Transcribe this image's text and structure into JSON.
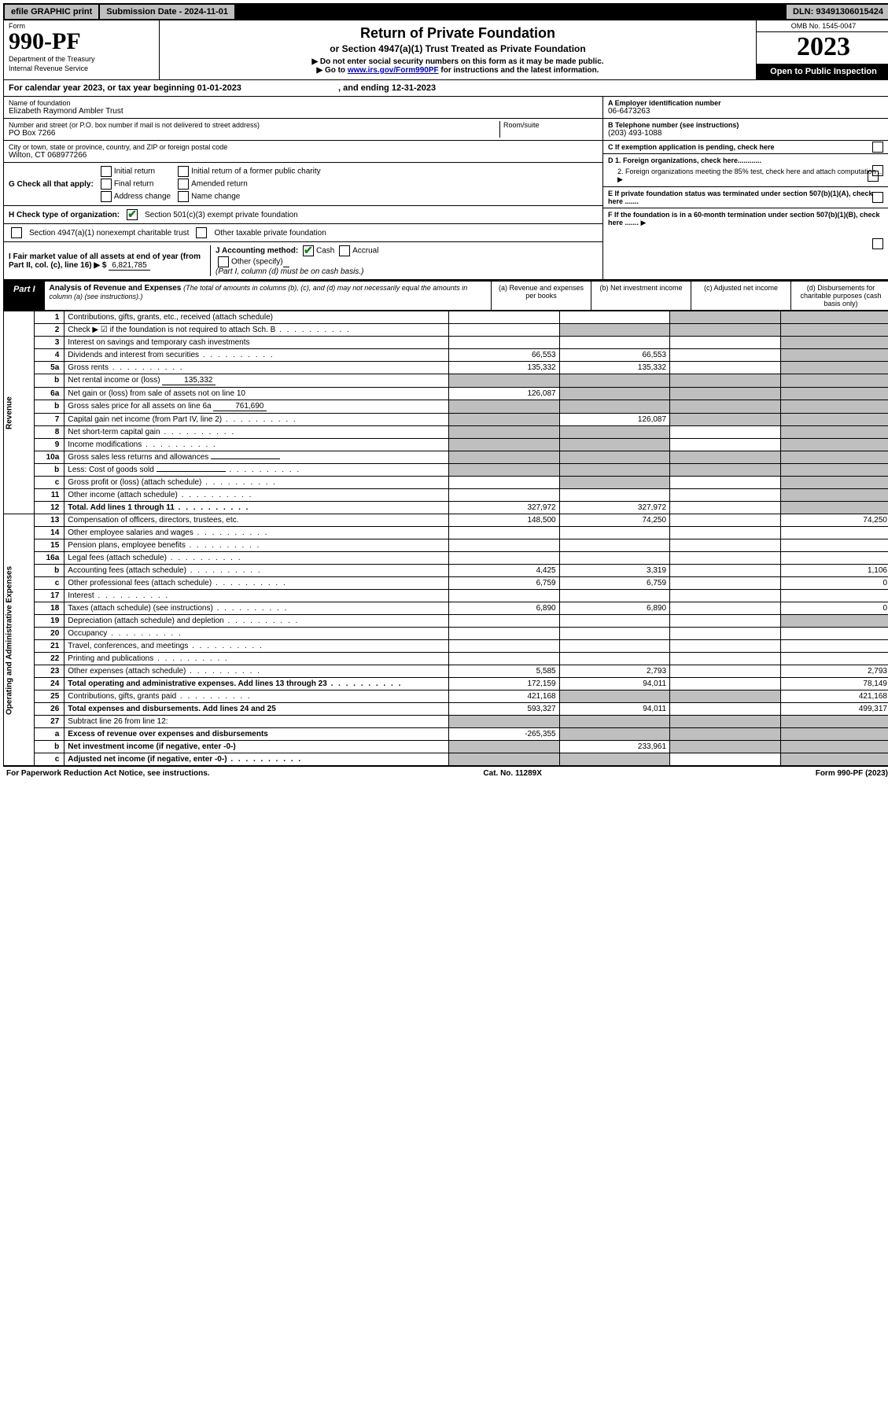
{
  "topbar": {
    "efile": "efile GRAPHIC print",
    "submission": "Submission Date - 2024-11-01",
    "dln": "DLN: 93491306015424"
  },
  "header": {
    "form_label": "Form",
    "form_number": "990-PF",
    "dept1": "Department of the Treasury",
    "dept2": "Internal Revenue Service",
    "title": "Return of Private Foundation",
    "subtitle": "or Section 4947(a)(1) Trust Treated as Private Foundation",
    "instr1": "▶ Do not enter social security numbers on this form as it may be made public.",
    "instr2_pre": "▶ Go to ",
    "instr2_link": "www.irs.gov/Form990PF",
    "instr2_post": " for instructions and the latest information.",
    "omb": "OMB No. 1545-0047",
    "year": "2023",
    "open": "Open to Public Inspection"
  },
  "calyear": {
    "text_pre": "For calendar year 2023, or tax year beginning ",
    "begin": "01-01-2023",
    "mid": " , and ending ",
    "end": "12-31-2023"
  },
  "foundation": {
    "name_label": "Name of foundation",
    "name": "Elizabeth Raymond Ambler Trust",
    "addr_label": "Number and street (or P.O. box number if mail is not delivered to street address)",
    "addr": "PO Box 7266",
    "room_label": "Room/suite",
    "city_label": "City or town, state or province, country, and ZIP or foreign postal code",
    "city": "Wilton, CT 068977266",
    "ein_label": "A Employer identification number",
    "ein": "06-6473263",
    "tel_label": "B Telephone number (see instructions)",
    "tel": "(203) 493-1088",
    "c_label": "C If exemption application is pending, check here",
    "d1": "D 1. Foreign organizations, check here............",
    "d2": "2. Foreign organizations meeting the 85% test, check here and attach computation ...",
    "e": "E  If private foundation status was terminated under section 507(b)(1)(A), check here .......",
    "f": "F  If the foundation is in a 60-month termination under section 507(b)(1)(B), check here .......",
    "g_label": "G Check all that apply:",
    "g_opts": [
      "Initial return",
      "Final return",
      "Address change",
      "Initial return of a former public charity",
      "Amended return",
      "Name change"
    ],
    "h_label": "H Check type of organization:",
    "h_opts": [
      "Section 501(c)(3) exempt private foundation",
      "Section 4947(a)(1) nonexempt charitable trust",
      "Other taxable private foundation"
    ],
    "i_label": "I Fair market value of all assets at end of year (from Part II, col. (c), line 16) ▶ $",
    "i_val": "6,821,785",
    "j_label": "J Accounting method:",
    "j_cash": "Cash",
    "j_accrual": "Accrual",
    "j_other": "Other (specify)",
    "j_note": "(Part I, column (d) must be on cash basis.)"
  },
  "part1": {
    "label": "Part I",
    "title": "Analysis of Revenue and Expenses",
    "note": "(The total of amounts in columns (b), (c), and (d) may not necessarily equal the amounts in column (a) (see instructions).)",
    "cols": {
      "a": "(a) Revenue and expenses per books",
      "b": "(b) Net investment income",
      "c": "(c) Adjusted net income",
      "d": "(d) Disbursements for charitable purposes (cash basis only)"
    }
  },
  "sections": {
    "revenue": "Revenue",
    "expenses": "Operating and Administrative Expenses"
  },
  "rows": [
    {
      "n": "1",
      "d": "Contributions, gifts, grants, etc., received (attach schedule)",
      "a": "",
      "b": "",
      "c": "g",
      "dd": "g"
    },
    {
      "n": "2",
      "d": "Check ▶ ☑ if the foundation is not required to attach Sch. B",
      "a": "",
      "b": "g",
      "c": "g",
      "dd": "g",
      "dots": true
    },
    {
      "n": "3",
      "d": "Interest on savings and temporary cash investments",
      "a": "",
      "b": "",
      "c": "",
      "dd": "g"
    },
    {
      "n": "4",
      "d": "Dividends and interest from securities",
      "a": "66,553",
      "b": "66,553",
      "c": "",
      "dd": "g",
      "dots": true
    },
    {
      "n": "5a",
      "d": "Gross rents",
      "a": "135,332",
      "b": "135,332",
      "c": "",
      "dd": "g",
      "dots": true
    },
    {
      "n": "b",
      "d": "Net rental income or (loss)",
      "sub": "135,332",
      "a": "g",
      "b": "g",
      "c": "g",
      "dd": "g"
    },
    {
      "n": "6a",
      "d": "Net gain or (loss) from sale of assets not on line 10",
      "a": "126,087",
      "b": "g",
      "c": "g",
      "dd": "g"
    },
    {
      "n": "b",
      "d": "Gross sales price for all assets on line 6a",
      "sub": "761,690",
      "a": "g",
      "b": "g",
      "c": "g",
      "dd": "g"
    },
    {
      "n": "7",
      "d": "Capital gain net income (from Part IV, line 2)",
      "a": "g",
      "b": "126,087",
      "c": "g",
      "dd": "g",
      "dots": true
    },
    {
      "n": "8",
      "d": "Net short-term capital gain",
      "a": "g",
      "b": "g",
      "c": "",
      "dd": "g",
      "dots": true
    },
    {
      "n": "9",
      "d": "Income modifications",
      "a": "g",
      "b": "g",
      "c": "",
      "dd": "g",
      "dots": true
    },
    {
      "n": "10a",
      "d": "Gross sales less returns and allowances",
      "subbox": true,
      "a": "g",
      "b": "g",
      "c": "g",
      "dd": "g"
    },
    {
      "n": "b",
      "d": "Less: Cost of goods sold",
      "subbox": true,
      "a": "g",
      "b": "g",
      "c": "g",
      "dd": "g",
      "dots": true
    },
    {
      "n": "c",
      "d": "Gross profit or (loss) (attach schedule)",
      "a": "",
      "b": "g",
      "c": "",
      "dd": "g",
      "dots": true
    },
    {
      "n": "11",
      "d": "Other income (attach schedule)",
      "a": "",
      "b": "",
      "c": "",
      "dd": "g",
      "dots": true
    },
    {
      "n": "12",
      "d": "Total. Add lines 1 through 11",
      "a": "327,972",
      "b": "327,972",
      "c": "",
      "dd": "g",
      "bold": true,
      "dots": true
    },
    {
      "n": "13",
      "d": "Compensation of officers, directors, trustees, etc.",
      "a": "148,500",
      "b": "74,250",
      "c": "",
      "dd": "74,250"
    },
    {
      "n": "14",
      "d": "Other employee salaries and wages",
      "a": "",
      "b": "",
      "c": "",
      "dd": "",
      "dots": true
    },
    {
      "n": "15",
      "d": "Pension plans, employee benefits",
      "a": "",
      "b": "",
      "c": "",
      "dd": "",
      "dots": true
    },
    {
      "n": "16a",
      "d": "Legal fees (attach schedule)",
      "a": "",
      "b": "",
      "c": "",
      "dd": "",
      "dots": true
    },
    {
      "n": "b",
      "d": "Accounting fees (attach schedule)",
      "a": "4,425",
      "b": "3,319",
      "c": "",
      "dd": "1,106",
      "dots": true
    },
    {
      "n": "c",
      "d": "Other professional fees (attach schedule)",
      "a": "6,759",
      "b": "6,759",
      "c": "",
      "dd": "0",
      "dots": true
    },
    {
      "n": "17",
      "d": "Interest",
      "a": "",
      "b": "",
      "c": "",
      "dd": "",
      "dots": true
    },
    {
      "n": "18",
      "d": "Taxes (attach schedule) (see instructions)",
      "a": "6,890",
      "b": "6,890",
      "c": "",
      "dd": "0",
      "dots": true
    },
    {
      "n": "19",
      "d": "Depreciation (attach schedule) and depletion",
      "a": "",
      "b": "",
      "c": "",
      "dd": "g",
      "dots": true
    },
    {
      "n": "20",
      "d": "Occupancy",
      "a": "",
      "b": "",
      "c": "",
      "dd": "",
      "dots": true
    },
    {
      "n": "21",
      "d": "Travel, conferences, and meetings",
      "a": "",
      "b": "",
      "c": "",
      "dd": "",
      "dots": true
    },
    {
      "n": "22",
      "d": "Printing and publications",
      "a": "",
      "b": "",
      "c": "",
      "dd": "",
      "dots": true
    },
    {
      "n": "23",
      "d": "Other expenses (attach schedule)",
      "a": "5,585",
      "b": "2,793",
      "c": "",
      "dd": "2,793",
      "dots": true
    },
    {
      "n": "24",
      "d": "Total operating and administrative expenses. Add lines 13 through 23",
      "a": "172,159",
      "b": "94,011",
      "c": "",
      "dd": "78,149",
      "bold": true,
      "dots": true
    },
    {
      "n": "25",
      "d": "Contributions, gifts, grants paid",
      "a": "421,168",
      "b": "g",
      "c": "g",
      "dd": "421,168",
      "dots": true
    },
    {
      "n": "26",
      "d": "Total expenses and disbursements. Add lines 24 and 25",
      "a": "593,327",
      "b": "94,011",
      "c": "",
      "dd": "499,317",
      "bold": true
    },
    {
      "n": "27",
      "d": "Subtract line 26 from line 12:",
      "a": "g",
      "b": "g",
      "c": "g",
      "dd": "g"
    },
    {
      "n": "a",
      "d": "Excess of revenue over expenses and disbursements",
      "a": "-265,355",
      "b": "g",
      "c": "g",
      "dd": "g",
      "bold": true
    },
    {
      "n": "b",
      "d": "Net investment income (if negative, enter -0-)",
      "a": "g",
      "b": "233,961",
      "c": "g",
      "dd": "g",
      "bold": true
    },
    {
      "n": "c",
      "d": "Adjusted net income (if negative, enter -0-)",
      "a": "g",
      "b": "g",
      "c": "",
      "dd": "g",
      "bold": true,
      "dots": true
    }
  ],
  "footer": {
    "left": "For Paperwork Reduction Act Notice, see instructions.",
    "mid": "Cat. No. 11289X",
    "right": "Form 990-PF (2023)"
  }
}
